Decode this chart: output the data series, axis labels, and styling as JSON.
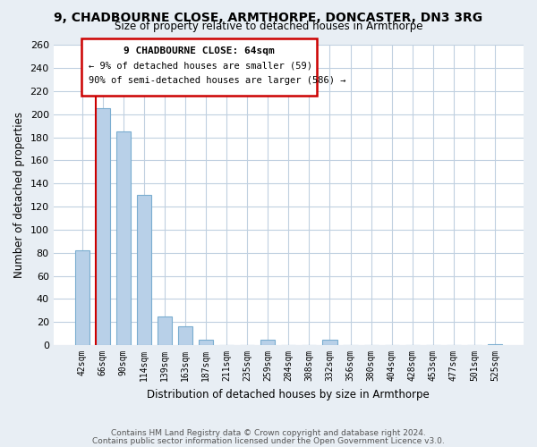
{
  "title": "9, CHADBOURNE CLOSE, ARMTHORPE, DONCASTER, DN3 3RG",
  "subtitle": "Size of property relative to detached houses in Armthorpe",
  "xlabel": "Distribution of detached houses by size in Armthorpe",
  "ylabel": "Number of detached properties",
  "bin_labels": [
    "42sqm",
    "66sqm",
    "90sqm",
    "114sqm",
    "139sqm",
    "163sqm",
    "187sqm",
    "211sqm",
    "235sqm",
    "259sqm",
    "284sqm",
    "308sqm",
    "332sqm",
    "356sqm",
    "380sqm",
    "404sqm",
    "428sqm",
    "453sqm",
    "477sqm",
    "501sqm",
    "525sqm"
  ],
  "bar_values": [
    82,
    205,
    185,
    130,
    25,
    16,
    5,
    0,
    0,
    5,
    0,
    0,
    5,
    0,
    0,
    0,
    0,
    0,
    0,
    0,
    1
  ],
  "bar_color": "#b8d0e8",
  "bar_edge_color": "#7aadd0",
  "highlight_color": "#cc0000",
  "ylim": [
    0,
    260
  ],
  "yticks": [
    0,
    20,
    40,
    60,
    80,
    100,
    120,
    140,
    160,
    180,
    200,
    220,
    240,
    260
  ],
  "annotation_title": "9 CHADBOURNE CLOSE: 64sqm",
  "annotation_line1": "← 9% of detached houses are smaller (59)",
  "annotation_line2": "90% of semi-detached houses are larger (586) →",
  "footer1": "Contains HM Land Registry data © Crown copyright and database right 2024.",
  "footer2": "Contains public sector information licensed under the Open Government Licence v3.0.",
  "bg_color": "#e8eef4",
  "plot_bg_color": "#ffffff",
  "grid_color": "#c0d0e0"
}
